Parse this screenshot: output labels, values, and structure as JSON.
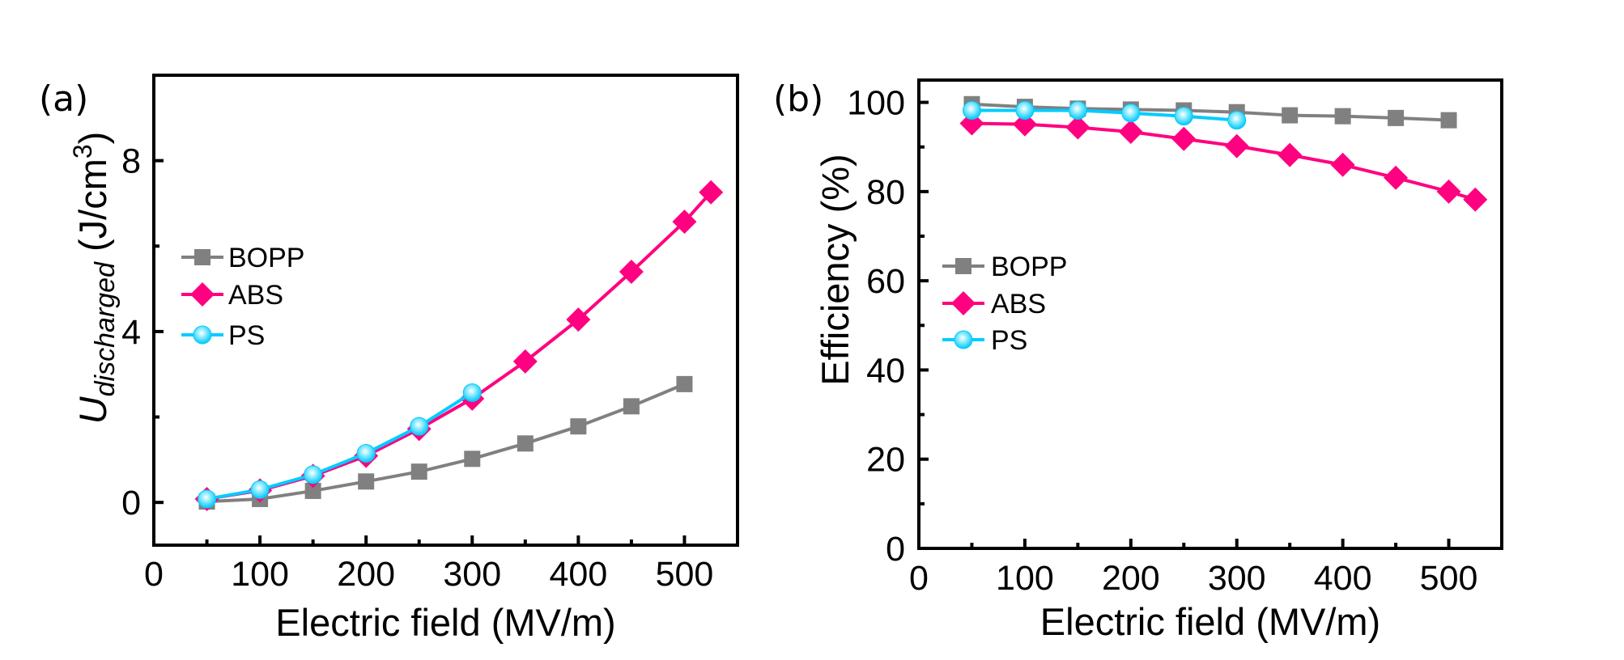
{
  "figure": {
    "panel_labels": [
      "(a)",
      "(b)"
    ]
  },
  "chart_data": [
    {
      "type": "line",
      "panel": "(a)",
      "title": "",
      "xlabel": "Electric field (MV/m)",
      "ylabel_main": "U",
      "ylabel_sub": "discharged",
      "ylabel_unit": " (J/cm",
      "ylabel_sup": "3",
      "ylabel_close": ")",
      "xlim": [
        0,
        550
      ],
      "ylim": [
        -1,
        10
      ],
      "xticks": [
        0,
        100,
        200,
        300,
        400,
        500
      ],
      "xtick_labels": [
        "0",
        "100",
        "200",
        "300",
        "400",
        "500"
      ],
      "xminor": [
        50,
        150,
        250,
        350,
        450
      ],
      "yticks": [
        0,
        4,
        8
      ],
      "ytick_labels": [
        "0",
        "4",
        "8"
      ],
      "yminor": [
        2,
        6
      ],
      "grid": false,
      "legend_position": "center-left",
      "series": [
        {
          "name": "BOPP",
          "color": "#808080",
          "marker": "square",
          "x": [
            50,
            100,
            150,
            200,
            250,
            300,
            350,
            400,
            450,
            500
          ],
          "y": [
            0.02,
            0.08,
            0.27,
            0.49,
            0.72,
            1.02,
            1.38,
            1.78,
            2.25,
            2.77
          ]
        },
        {
          "name": "ABS",
          "color": "#FF0080",
          "marker": "diamond",
          "x": [
            50,
            100,
            150,
            200,
            250,
            300,
            350,
            400,
            450,
            500,
            525
          ],
          "y": [
            0.08,
            0.28,
            0.62,
            1.09,
            1.72,
            2.43,
            3.3,
            4.28,
            5.4,
            6.57,
            7.26
          ]
        },
        {
          "name": "PS",
          "color": "#00CCFF",
          "marker": "circle",
          "x": [
            50,
            100,
            150,
            200,
            250,
            300
          ],
          "y": [
            0.08,
            0.3,
            0.65,
            1.15,
            1.78,
            2.57
          ]
        }
      ]
    },
    {
      "type": "line",
      "panel": "(b)",
      "title": "",
      "xlabel": "Electric field (MV/m)",
      "ylabel": "Efficiency (%)",
      "xlim": [
        0,
        550
      ],
      "ylim": [
        0,
        105
      ],
      "xticks": [
        0,
        100,
        200,
        300,
        400,
        500
      ],
      "xtick_labels": [
        "0",
        "100",
        "200",
        "300",
        "400",
        "500"
      ],
      "xminor": [
        50,
        150,
        250,
        350,
        450
      ],
      "yticks": [
        0,
        20,
        40,
        60,
        80,
        100
      ],
      "ytick_labels": [
        "0",
        "20",
        "40",
        "60",
        "80",
        "100"
      ],
      "yminor": [
        10,
        30,
        50,
        70,
        90
      ],
      "grid": false,
      "legend_position": "center-left",
      "series": [
        {
          "name": "BOPP",
          "color": "#808080",
          "marker": "square",
          "x": [
            50,
            100,
            150,
            200,
            250,
            300,
            350,
            400,
            450,
            500
          ],
          "y": [
            99.6,
            99.0,
            98.6,
            98.4,
            98.2,
            97.8,
            97.1,
            96.9,
            96.5,
            96.0
          ]
        },
        {
          "name": "ABS",
          "color": "#FF0080",
          "marker": "diamond",
          "x": [
            50,
            100,
            150,
            200,
            250,
            300,
            350,
            400,
            450,
            500,
            525
          ],
          "y": [
            95.3,
            95.1,
            94.4,
            93.4,
            91.8,
            90.2,
            88.2,
            86.0,
            83.1,
            80.0,
            78.2
          ]
        },
        {
          "name": "PS",
          "color": "#00CCFF",
          "marker": "circle",
          "x": [
            50,
            100,
            150,
            200,
            250,
            300
          ],
          "y": [
            98.2,
            98.2,
            98.2,
            97.6,
            96.9,
            96.0
          ]
        }
      ]
    }
  ]
}
